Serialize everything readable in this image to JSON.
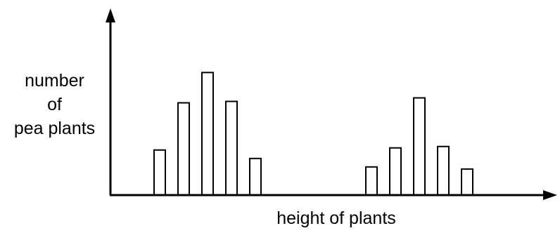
{
  "chart_data": {
    "type": "bar",
    "xlabel": "height of plants",
    "ylabel_lines": [
      "number",
      "of",
      "pea plants"
    ],
    "grid": false,
    "legend": "none",
    "y_ticks_shown": false,
    "x_ticks_shown": false,
    "series": [
      {
        "group": "left",
        "values": [
          64,
          131,
          174,
          133,
          52
        ]
      },
      {
        "group": "right",
        "values": [
          40,
          67,
          138,
          69,
          37
        ]
      }
    ],
    "ylim": [
      0,
      265
    ],
    "colors": {
      "bar_fill": "#ffffff",
      "bar_stroke": "#000000",
      "axis": "#000000"
    }
  }
}
